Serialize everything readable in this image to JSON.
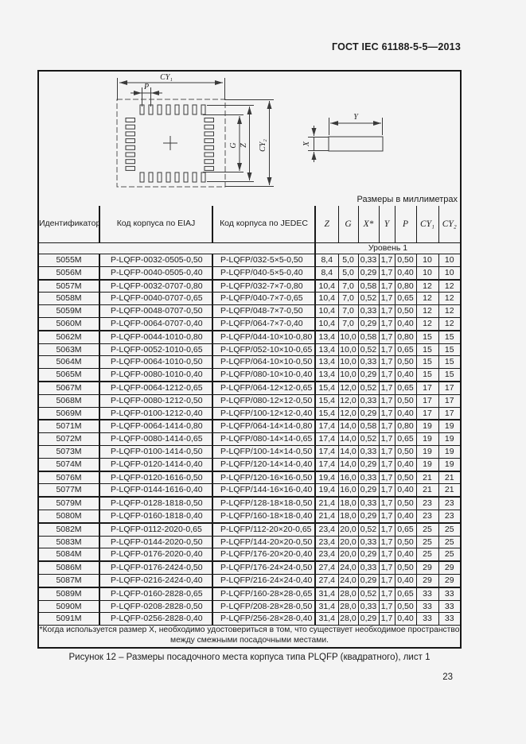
{
  "page": {
    "header_right": "ГОСТ IEC 61188-5-5—2013",
    "page_number": "23",
    "units_note": "Размеры в миллиметрах",
    "caption": "Рисунок 12 –  Размеры посадочного места корпуса типа PLQFP (квадратного), лист 1"
  },
  "figure": {
    "labels": {
      "cy1": "CY₁",
      "cy2": "CY₂",
      "p": "P",
      "g": "G",
      "z": "Z",
      "y": "Y",
      "x": "X"
    }
  },
  "table": {
    "columns": [
      "Идентификатор посадочного места",
      "Код корпуса по EIAJ",
      "Код корпуса по JEDEC",
      "Z",
      "G",
      "X*",
      "Y",
      "P",
      "CY₁",
      "CY₂"
    ],
    "level_header": "Уровень 1",
    "rows": [
      [
        "5055M",
        "P-LQFP-0032-0505-0,50",
        "P-LQFP/032-5×5-0,50",
        "8,4",
        "5,0",
        "0,33",
        "1,7",
        "0,50",
        "10",
        "10"
      ],
      [
        "5056M",
        "P-LQFP-0040-0505-0,40",
        "P-LQFP/040-5×5-0,40",
        "8,4",
        "5,0",
        "0,29",
        "1,7",
        "0,40",
        "10",
        "10"
      ],
      [
        "5057M",
        "P-LQFP-0032-0707-0,80",
        "P-LQFP/032-7×7-0,80",
        "10,4",
        "7,0",
        "0,58",
        "1,7",
        "0,80",
        "12",
        "12"
      ],
      [
        "5058M",
        "P-LQFP-0040-0707-0,65",
        "P-LQFP/040-7×7-0,65",
        "10,4",
        "7,0",
        "0,52",
        "1,7",
        "0,65",
        "12",
        "12"
      ],
      [
        "5059M",
        "P-LQFP-0048-0707-0,50",
        "P-LQFP/048-7×7-0,50",
        "10,4",
        "7,0",
        "0,33",
        "1,7",
        "0,50",
        "12",
        "12"
      ],
      [
        "5060M",
        "P-LQFP-0064-0707-0,40",
        "P-LQFP/064-7×7-0,40",
        "10,4",
        "7,0",
        "0,29",
        "1,7",
        "0,40",
        "12",
        "12"
      ],
      [
        "5062M",
        "P-LQFP-0044-1010-0,80",
        "P-LQFP/044-10×10-0,80",
        "13,4",
        "10,0",
        "0,58",
        "1,7",
        "0,80",
        "15",
        "15"
      ],
      [
        "5063M",
        "P-LQFP-0052-1010-0,65",
        "P-LQFP/052-10×10-0,65",
        "13,4",
        "10,0",
        "0,52",
        "1,7",
        "0,65",
        "15",
        "15"
      ],
      [
        "5064M",
        "P-LQFP-0064-1010-0,50",
        "P-LQFP/064-10×10-0,50",
        "13,4",
        "10,0",
        "0,33",
        "1,7",
        "0,50",
        "15",
        "15"
      ],
      [
        "5065M",
        "P-LQFP-0080-1010-0,40",
        "P-LQFP/080-10×10-0,40",
        "13,4",
        "10,0",
        "0,29",
        "1,7",
        "0,40",
        "15",
        "15"
      ],
      [
        "5067M",
        "P-LQFP-0064-1212-0,65",
        "P-LQFP/064-12×12-0,65",
        "15,4",
        "12,0",
        "0,52",
        "1,7",
        "0,65",
        "17",
        "17"
      ],
      [
        "5068M",
        "P-LQFP-0080-1212-0,50",
        "P-LQFP/080-12×12-0,50",
        "15,4",
        "12,0",
        "0,33",
        "1,7",
        "0,50",
        "17",
        "17"
      ],
      [
        "5069M",
        "P-LQFP-0100-1212-0,40",
        "P-LQFP/100-12×12-0,40",
        "15,4",
        "12,0",
        "0,29",
        "1,7",
        "0,40",
        "17",
        "17"
      ],
      [
        "5071M",
        "P-LQFP-0064-1414-0,80",
        "P-LQFP/064-14×14-0,80",
        "17,4",
        "14,0",
        "0,58",
        "1,7",
        "0,80",
        "19",
        "19"
      ],
      [
        "5072M",
        "P-LQFP-0080-1414-0,65",
        "P-LQFP/080-14×14-0,65",
        "17,4",
        "14,0",
        "0,52",
        "1,7",
        "0,65",
        "19",
        "19"
      ],
      [
        "5073M",
        "P-LQFP-0100-1414-0,50",
        "P-LQFP/100-14×14-0,50",
        "17,4",
        "14,0",
        "0,33",
        "1,7",
        "0,50",
        "19",
        "19"
      ],
      [
        "5074M",
        "P-LQFP-0120-1414-0,40",
        "P-LQFP/120-14×14-0,40",
        "17,4",
        "14,0",
        "0,29",
        "1,7",
        "0,40",
        "19",
        "19"
      ],
      [
        "5076M",
        "P-LQFP-0120-1616-0,50",
        "P-LQFP/120-16×16-0,50",
        "19,4",
        "16,0",
        "0,33",
        "1,7",
        "0,50",
        "21",
        "21"
      ],
      [
        "5077M",
        "P-LQFP-0144-1616-0,40",
        "P-LQFP/144-16×16-0,40",
        "19,4",
        "16,0",
        "0,29",
        "1,7",
        "0,40",
        "21",
        "21"
      ],
      [
        "5079M",
        "P-LQFP-0128-1818-0,50",
        "P-LQFP/128-18×18-0,50",
        "21,4",
        "18,0",
        "0,33",
        "1,7",
        "0,50",
        "23",
        "23"
      ],
      [
        "5080M",
        "P-LQFP-0160-1818-0,40",
        "P-LQFP/160-18×18-0,40",
        "21,4",
        "18,0",
        "0,29",
        "1,7",
        "0,40",
        "23",
        "23"
      ],
      [
        "5082M",
        "P-LQFP-0112-2020-0,65",
        "P-LQFP/112-20×20-0,65",
        "23,4",
        "20,0",
        "0,52",
        "1,7",
        "0,65",
        "25",
        "25"
      ],
      [
        "5083M",
        "P-LQFP-0144-2020-0,50",
        "P-LQFP/144-20×20-0,50",
        "23,4",
        "20,0",
        "0,33",
        "1,7",
        "0,50",
        "25",
        "25"
      ],
      [
        "5084M",
        "P-LQFP-0176-2020-0,40",
        "P-LQFP/176-20×20-0,40",
        "23,4",
        "20,0",
        "0,29",
        "1,7",
        "0,40",
        "25",
        "25"
      ],
      [
        "5086M",
        "P-LQFP-0176-2424-0,50",
        "P-LQFP/176-24×24-0,50",
        "27,4",
        "24,0",
        "0,33",
        "1,7",
        "0,50",
        "29",
        "29"
      ],
      [
        "5087M",
        "P-LQFP-0216-2424-0,40",
        "P-LQFP/216-24×24-0,40",
        "27,4",
        "24,0",
        "0,29",
        "1,7",
        "0,40",
        "29",
        "29"
      ],
      [
        "5089M",
        "P-LQFP-0160-2828-0,65",
        "P-LQFP/160-28×28-0,65",
        "31,4",
        "28,0",
        "0,52",
        "1,7",
        "0,65",
        "33",
        "33"
      ],
      [
        "5090M",
        "P-LQFP-0208-2828-0,50",
        "P-LQFP/208-28×28-0,50",
        "31,4",
        "28,0",
        "0,33",
        "1,7",
        "0,50",
        "33",
        "33"
      ],
      [
        "5091M",
        "P-LQFP-0256-2828-0,40",
        "P-LQFP/256-28×28-0,40",
        "31,4",
        "28,0",
        "0,29",
        "1,7",
        "0,40",
        "33",
        "33"
      ]
    ],
    "group_end_rows": [
      1,
      5,
      9,
      12,
      16,
      18,
      20,
      23,
      25
    ],
    "footnote_line1": "*Когда используется размер X, необходимо удостовериться в том, что существует необходимое пространство",
    "footnote_line2": "между смежными посадочными местами."
  }
}
